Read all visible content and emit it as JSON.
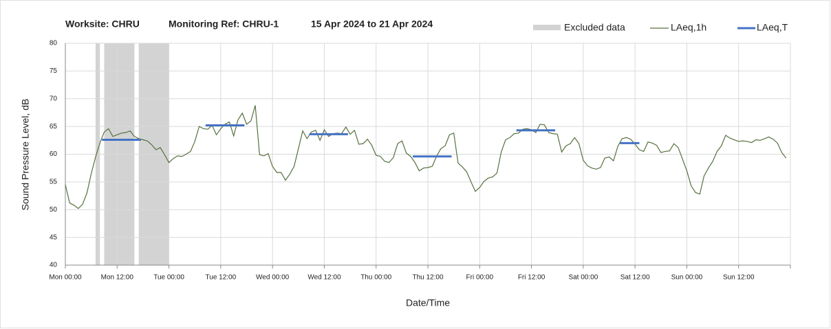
{
  "chart_data": {
    "type": "line",
    "title_parts": [
      "Worksite: CHRU",
      "Monitoring Ref: CHRU-1",
      "15 Apr 2024 to 21 Apr 2024"
    ],
    "xlabel": "Date/Time",
    "ylabel": "Sound Pressure Level, dB",
    "xlim": [
      0,
      168
    ],
    "ylim": [
      40,
      80
    ],
    "yticks": [
      40,
      45,
      50,
      55,
      60,
      65,
      70,
      75,
      80
    ],
    "xticks": [
      {
        "value": 0,
        "label": "Mon 00:00"
      },
      {
        "value": 12,
        "label": "Mon 12:00"
      },
      {
        "value": 24,
        "label": "Tue 00:00"
      },
      {
        "value": 36,
        "label": "Tue 12:00"
      },
      {
        "value": 48,
        "label": "Wed 00:00"
      },
      {
        "value": 60,
        "label": "Wed 12:00"
      },
      {
        "value": 72,
        "label": "Thu 00:00"
      },
      {
        "value": 84,
        "label": "Thu 12:00"
      },
      {
        "value": 96,
        "label": "Fri 00:00"
      },
      {
        "value": 108,
        "label": "Fri 12:00"
      },
      {
        "value": 120,
        "label": "Sat 00:00"
      },
      {
        "value": 132,
        "label": "Sat 12:00"
      },
      {
        "value": 144,
        "label": "Sun 00:00"
      },
      {
        "value": 156,
        "label": "Sun 12:00"
      },
      {
        "value": 168,
        "label": ""
      }
    ],
    "grid": true,
    "excluded": {
      "name": "Excluded data",
      "color": "#d3d3d3",
      "ranges": [
        [
          7,
          8
        ],
        [
          9,
          16
        ],
        [
          17,
          24
        ]
      ]
    },
    "series": [
      {
        "name": "LAeq,1h",
        "color": "#56703f",
        "x": [
          0,
          1,
          2,
          3,
          4,
          5,
          6,
          7,
          8,
          9,
          10,
          11,
          12,
          13,
          14,
          15,
          16,
          17,
          18,
          19,
          20,
          21,
          22,
          23,
          24,
          25,
          26,
          27,
          28,
          29,
          30,
          31,
          32,
          33,
          34,
          35,
          36,
          37,
          38,
          39,
          40,
          41,
          42,
          43,
          44,
          45,
          46,
          47,
          48,
          49,
          50,
          51,
          52,
          53,
          54,
          55,
          56,
          57,
          58,
          59,
          60,
          61,
          62,
          63,
          64,
          65,
          66,
          67,
          68,
          69,
          70,
          71,
          72,
          73,
          74,
          75,
          76,
          77,
          78,
          79,
          80,
          81,
          82,
          83,
          84,
          85,
          86,
          87,
          88,
          89,
          90,
          91,
          92,
          93,
          94,
          95,
          96,
          97,
          98,
          99,
          100,
          101,
          102,
          103,
          104,
          105,
          106,
          107,
          108,
          109,
          110,
          111,
          112,
          113,
          114,
          115,
          116,
          117,
          118,
          119,
          120,
          121,
          122,
          123,
          124,
          125,
          126,
          127,
          128,
          129,
          130,
          131,
          132,
          133,
          134,
          135,
          136,
          137,
          138,
          139,
          140,
          141,
          142,
          143,
          144,
          145,
          146,
          147,
          148,
          149,
          150,
          151,
          152,
          153,
          154,
          155,
          156,
          157,
          158,
          159,
          160,
          161,
          162,
          163,
          164,
          165,
          166,
          167
        ],
        "values": [
          54.5,
          51.2,
          50.8,
          50.2,
          51,
          53,
          56.5,
          59.5,
          62,
          64,
          64.6,
          63.2,
          63.5,
          63.8,
          63.9,
          64.2,
          63.2,
          62.8,
          62.6,
          62.4,
          61.7,
          60.8,
          61.2,
          59.9,
          58.5,
          59.2,
          59.7,
          59.6,
          60,
          60.5,
          62.3,
          65,
          64.6,
          64.5,
          65.2,
          63.5,
          64.6,
          65.4,
          65.8,
          63.3,
          66.2,
          67.4,
          65.4,
          66,
          68.8,
          59.9,
          59.7,
          60.1,
          57.8,
          56.7,
          56.7,
          55.3,
          56.4,
          57.8,
          61,
          64.2,
          62.8,
          64,
          64.3,
          62.5,
          64.4,
          63.2,
          63.7,
          63.8,
          63.7,
          64.9,
          63.6,
          64.3,
          61.8,
          61.9,
          62.7,
          61.6,
          59.8,
          59.6,
          58.7,
          58.5,
          59.4,
          61.9,
          62.4,
          60.2,
          59.6,
          58.5,
          57,
          57.5,
          57.6,
          57.8,
          59.6,
          61,
          61.5,
          63.5,
          63.8,
          58.4,
          57.7,
          56.8,
          55,
          53.3,
          54,
          55.1,
          55.7,
          55.9,
          56.6,
          60.4,
          62.6,
          63,
          63.7,
          63.8,
          64.5,
          64.6,
          64.4,
          63.9,
          65.4,
          65.3,
          63.9,
          63.7,
          63.6,
          60.4,
          61.5,
          61.9,
          63,
          61.9,
          58.9,
          57.9,
          57.5,
          57.3,
          57.6,
          59.3,
          59.5,
          58.8,
          61.4,
          62.8,
          63,
          62.7,
          61.8,
          60.8,
          60.5,
          62.2,
          62,
          61.6,
          60.3,
          60.5,
          60.6,
          61.9,
          61.2,
          59.1,
          57,
          54.3,
          53.1,
          52.8,
          56.1,
          57.5,
          58.7,
          60.5,
          61.5,
          63.4,
          62.9,
          62.6,
          62.3,
          62.4,
          62.3,
          62.1,
          62.6,
          62.5,
          62.8,
          63.1,
          62.7,
          62,
          60.3,
          59.3
        ]
      },
      {
        "name": "LAeq,T",
        "color": "#4472c4",
        "x_start": [
          8.5,
          32.5,
          56.5,
          80.5,
          104.5,
          128.5
        ],
        "x_end": [
          17.5,
          41.5,
          65.5,
          89.5,
          113.5,
          133
        ],
        "values": [
          62.6,
          65.2,
          63.6,
          59.6,
          64.3,
          62.0
        ]
      }
    ]
  }
}
